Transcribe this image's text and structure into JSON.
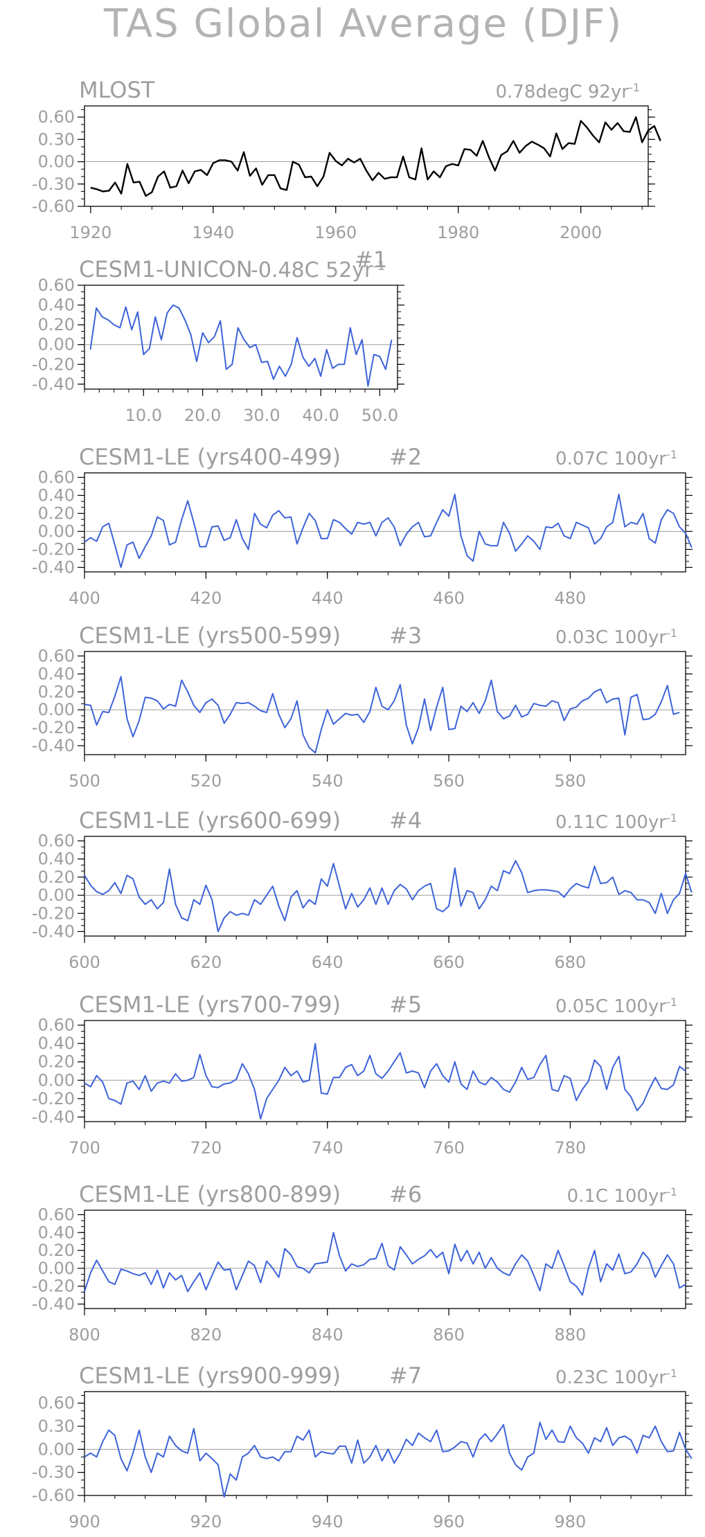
{
  "figure": {
    "title": "TAS Global Average (DJF)"
  },
  "colors": {
    "text": "#9e9e9e",
    "obs_line": "#000000",
    "model_line": "#3d63d9",
    "zero_line": "#9e9e9e",
    "axis": "#000000"
  },
  "chart_data": [
    {
      "type": "line",
      "title": "MLOST",
      "trend_label": "0.78degC 92yr",
      "trend_exp": "-1",
      "line_color": "#000000",
      "x_start": 1920,
      "xlim": [
        1919,
        2011
      ],
      "xticks": [
        1920,
        1940,
        1960,
        1980,
        2000
      ],
      "xtick_labels": [
        "1920",
        "1940",
        "1960",
        "1980",
        "2000"
      ],
      "ylim": [
        -0.6,
        0.75
      ],
      "yticks": [
        -0.6,
        -0.3,
        0.0,
        0.3,
        0.6
      ],
      "ytick_labels": [
        "-0.60",
        "-0.30",
        "0.00",
        "0.30",
        "0.60"
      ],
      "values": [
        -0.35,
        -0.37,
        -0.4,
        -0.39,
        -0.28,
        -0.43,
        -0.03,
        -0.28,
        -0.27,
        -0.46,
        -0.41,
        -0.2,
        -0.13,
        -0.35,
        -0.33,
        -0.12,
        -0.29,
        -0.13,
        -0.11,
        -0.18,
        -0.02,
        0.02,
        0.02,
        0.0,
        -0.12,
        0.13,
        -0.19,
        -0.09,
        -0.31,
        -0.18,
        -0.18,
        -0.36,
        -0.38,
        0.0,
        -0.04,
        -0.21,
        -0.2,
        -0.33,
        -0.2,
        0.12,
        0.01,
        -0.05,
        0.04,
        -0.01,
        0.04,
        -0.12,
        -0.25,
        -0.15,
        -0.23,
        -0.21,
        -0.21,
        0.07,
        -0.21,
        -0.24,
        0.18,
        -0.24,
        -0.13,
        -0.21,
        -0.06,
        -0.03,
        -0.05,
        0.17,
        0.16,
        0.08,
        0.28,
        0.06,
        -0.12,
        0.09,
        0.14,
        0.28,
        0.12,
        0.21,
        0.27,
        0.23,
        0.18,
        0.07,
        0.38,
        0.17,
        0.25,
        0.24,
        0.55,
        0.46,
        0.35,
        0.26,
        0.53,
        0.43,
        0.52,
        0.41,
        0.4,
        0.6,
        0.26,
        0.42,
        0.48,
        0.28
      ]
    },
    {
      "type": "line",
      "title": "CESM1-UNICON",
      "trend_label": "-0.48C 52yr",
      "trend_exp": "-1",
      "panel_number": "#1",
      "line_color": "#3d63d9",
      "x_start": 1,
      "xlim": [
        0,
        53
      ],
      "xticks": [
        10,
        20,
        30,
        40,
        50
      ],
      "xtick_labels": [
        "10.0",
        "20.0",
        "30.0",
        "40.0",
        "50.0"
      ],
      "ylim": [
        -0.45,
        0.6
      ],
      "yticks": [
        -0.4,
        -0.2,
        0.0,
        0.2,
        0.4,
        0.6
      ],
      "ytick_labels": [
        "-0.40",
        "-0.20",
        "0.00",
        "0.20",
        "0.40",
        "0.60"
      ],
      "values": [
        -0.05,
        0.37,
        0.28,
        0.25,
        0.2,
        0.17,
        0.38,
        0.15,
        0.33,
        -0.1,
        -0.04,
        0.28,
        0.05,
        0.32,
        0.4,
        0.37,
        0.25,
        0.1,
        -0.17,
        0.12,
        0.02,
        0.08,
        0.24,
        -0.25,
        -0.2,
        0.17,
        0.05,
        -0.03,
        0.0,
        -0.18,
        -0.17,
        -0.35,
        -0.22,
        -0.32,
        -0.2,
        0.07,
        -0.13,
        -0.22,
        -0.14,
        -0.32,
        -0.05,
        -0.24,
        -0.2,
        -0.2,
        0.17,
        -0.1,
        0.05,
        -0.42,
        -0.1,
        -0.12,
        -0.25,
        0.05
      ]
    },
    {
      "type": "line",
      "title": "CESM1-LE (yrs400-499)",
      "panel_number": "#2",
      "trend_label": "0.07C 100yr",
      "trend_exp": "-1",
      "line_color": "#3d63d9",
      "x_start": 400,
      "xlim": [
        400,
        499
      ],
      "xticks": [
        400,
        420,
        440,
        460,
        480
      ],
      "xtick_labels": [
        "400",
        "420",
        "440",
        "460",
        "480"
      ],
      "ylim": [
        -0.45,
        0.65
      ],
      "yticks": [
        -0.4,
        -0.2,
        0.0,
        0.2,
        0.4,
        0.6
      ],
      "ytick_labels": [
        "-0.40",
        "-0.20",
        "0.00",
        "0.20",
        "0.40",
        "0.60"
      ],
      "values": [
        -0.12,
        -0.07,
        -0.11,
        0.05,
        0.09,
        -0.15,
        -0.4,
        -0.15,
        -0.12,
        -0.3,
        -0.17,
        -0.05,
        0.16,
        0.12,
        -0.15,
        -0.12,
        0.13,
        0.34,
        0.1,
        -0.17,
        -0.17,
        0.05,
        0.06,
        -0.1,
        -0.07,
        0.13,
        -0.08,
        -0.2,
        0.2,
        0.08,
        0.04,
        0.18,
        0.23,
        0.15,
        0.16,
        -0.14,
        0.04,
        0.2,
        0.12,
        -0.08,
        -0.08,
        0.13,
        0.1,
        0.03,
        -0.03,
        0.1,
        0.08,
        0.1,
        -0.05,
        0.1,
        0.15,
        0.05,
        -0.16,
        -0.03,
        0.05,
        0.1,
        -0.06,
        -0.05,
        0.1,
        0.24,
        0.17,
        0.41,
        -0.05,
        -0.27,
        -0.33,
        0.0,
        -0.14,
        -0.16,
        -0.16,
        0.1,
        -0.02,
        -0.22,
        -0.14,
        -0.05,
        -0.11,
        -0.2,
        0.05,
        0.04,
        0.09,
        -0.05,
        -0.08,
        0.1,
        0.07,
        0.04,
        -0.14,
        -0.08,
        0.05,
        0.1,
        0.41,
        0.05,
        0.1,
        0.08,
        0.2,
        -0.08,
        -0.13,
        0.13,
        0.24,
        0.2,
        0.05,
        -0.02,
        -0.18
      ]
    },
    {
      "type": "line",
      "title": "CESM1-LE (yrs500-599)",
      "panel_number": "#3",
      "trend_label": "0.03C 100yr",
      "trend_exp": "-1",
      "line_color": "#3d63d9",
      "x_start": 500,
      "xlim": [
        500,
        599
      ],
      "xticks": [
        500,
        520,
        540,
        560,
        580
      ],
      "xtick_labels": [
        "500",
        "520",
        "540",
        "560",
        "580"
      ],
      "ylim": [
        -0.5,
        0.65
      ],
      "yticks": [
        -0.4,
        -0.2,
        0.0,
        0.2,
        0.4,
        0.6
      ],
      "ytick_labels": [
        "-0.40",
        "-0.20",
        "0.00",
        "0.20",
        "0.40",
        "0.60"
      ],
      "values": [
        0.06,
        0.05,
        -0.17,
        -0.02,
        -0.03,
        0.15,
        0.37,
        -0.1,
        -0.3,
        -0.12,
        0.14,
        0.13,
        0.1,
        0.01,
        0.06,
        0.04,
        0.33,
        0.2,
        0.05,
        -0.03,
        0.08,
        0.12,
        0.05,
        -0.15,
        -0.05,
        0.08,
        0.07,
        0.08,
        0.04,
        -0.01,
        -0.03,
        0.18,
        -0.05,
        -0.2,
        -0.1,
        0.1,
        -0.28,
        -0.42,
        -0.48,
        -0.22,
        0.0,
        -0.16,
        -0.1,
        -0.04,
        -0.06,
        -0.05,
        -0.14,
        -0.02,
        0.25,
        0.04,
        0.0,
        0.1,
        0.28,
        -0.17,
        -0.38,
        -0.2,
        0.12,
        -0.23,
        0.03,
        0.25,
        -0.22,
        -0.21,
        0.04,
        -0.02,
        0.08,
        -0.04,
        0.1,
        0.33,
        -0.02,
        -0.1,
        -0.07,
        0.05,
        -0.08,
        -0.05,
        0.07,
        0.05,
        0.04,
        0.1,
        0.08,
        -0.12,
        0.01,
        0.03,
        0.1,
        0.13,
        0.2,
        0.23,
        0.08,
        0.12,
        0.13,
        -0.28,
        0.14,
        0.17,
        -0.11,
        -0.1,
        -0.05,
        0.09,
        0.27,
        -0.05,
        -0.03
      ]
    },
    {
      "type": "line",
      "title": "CESM1-LE (yrs600-699)",
      "panel_number": "#4",
      "trend_label": "0.11C 100yr",
      "trend_exp": "-1",
      "line_color": "#3d63d9",
      "x_start": 600,
      "xlim": [
        600,
        699
      ],
      "xticks": [
        600,
        620,
        640,
        660,
        680
      ],
      "xtick_labels": [
        "600",
        "620",
        "640",
        "660",
        "680"
      ],
      "ylim": [
        -0.45,
        0.65
      ],
      "yticks": [
        -0.4,
        -0.2,
        0.0,
        0.2,
        0.4,
        0.6
      ],
      "ytick_labels": [
        "-0.40",
        "-0.20",
        "0.00",
        "0.20",
        "0.40",
        "0.60"
      ],
      "values": [
        0.22,
        0.11,
        0.04,
        0.01,
        0.05,
        0.14,
        0.02,
        0.22,
        0.18,
        -0.02,
        -0.1,
        -0.05,
        -0.15,
        -0.08,
        0.29,
        -0.1,
        -0.25,
        -0.28,
        -0.05,
        -0.1,
        0.11,
        -0.05,
        -0.4,
        -0.25,
        -0.18,
        -0.22,
        -0.2,
        -0.22,
        -0.05,
        -0.1,
        0.0,
        0.1,
        -0.12,
        -0.28,
        -0.02,
        0.05,
        -0.14,
        -0.05,
        -0.1,
        0.18,
        0.1,
        0.35,
        0.1,
        -0.15,
        0.02,
        -0.13,
        -0.05,
        0.08,
        -0.1,
        0.08,
        -0.1,
        0.05,
        0.12,
        0.07,
        -0.05,
        0.05,
        0.1,
        0.13,
        -0.15,
        -0.18,
        -0.12,
        0.3,
        -0.12,
        0.05,
        0.03,
        -0.15,
        -0.05,
        0.1,
        0.05,
        0.27,
        0.24,
        0.38,
        0.25,
        0.03,
        0.05,
        0.06,
        0.06,
        0.05,
        0.04,
        -0.02,
        0.07,
        0.13,
        0.1,
        0.08,
        0.32,
        0.13,
        0.14,
        0.2,
        0.01,
        0.05,
        0.03,
        -0.05,
        -0.05,
        -0.08,
        -0.2,
        0.02,
        -0.2,
        -0.05,
        0.02,
        0.24,
        0.03
      ]
    },
    {
      "type": "line",
      "title": "CESM1-LE (yrs700-799)",
      "panel_number": "#5",
      "trend_label": "0.05C 100yr",
      "trend_exp": "-1",
      "line_color": "#3d63d9",
      "x_start": 700,
      "xlim": [
        700,
        799
      ],
      "xticks": [
        700,
        720,
        740,
        760,
        780
      ],
      "xtick_labels": [
        "700",
        "720",
        "740",
        "760",
        "780"
      ],
      "ylim": [
        -0.45,
        0.65
      ],
      "yticks": [
        -0.4,
        -0.2,
        0.0,
        0.2,
        0.4,
        0.6
      ],
      "ytick_labels": [
        "-0.40",
        "-0.20",
        "0.00",
        "0.20",
        "0.40",
        "0.60"
      ],
      "values": [
        -0.03,
        -0.07,
        0.05,
        -0.02,
        -0.2,
        -0.22,
        -0.26,
        -0.03,
        -0.01,
        -0.1,
        0.05,
        -0.12,
        -0.03,
        -0.01,
        -0.03,
        0.07,
        -0.01,
        0.0,
        0.03,
        0.28,
        0.05,
        -0.07,
        -0.08,
        -0.04,
        -0.03,
        0.01,
        0.18,
        0.07,
        -0.1,
        -0.42,
        -0.2,
        -0.1,
        0.0,
        0.14,
        0.05,
        0.1,
        -0.02,
        0.0,
        0.4,
        -0.14,
        -0.15,
        0.03,
        0.03,
        0.14,
        0.17,
        0.05,
        0.1,
        0.27,
        0.07,
        0.02,
        0.1,
        0.2,
        0.3,
        0.08,
        0.1,
        0.08,
        -0.08,
        0.1,
        0.18,
        0.05,
        -0.02,
        0.2,
        -0.04,
        -0.1,
        0.1,
        -0.02,
        -0.05,
        0.03,
        -0.02,
        -0.1,
        -0.13,
        -0.02,
        0.14,
        0.01,
        0.03,
        0.17,
        0.27,
        -0.1,
        -0.12,
        0.05,
        0.02,
        -0.22,
        -0.1,
        -0.01,
        0.22,
        0.15,
        -0.1,
        0.14,
        0.26,
        -0.1,
        -0.18,
        -0.33,
        -0.25,
        -0.1,
        0.03,
        -0.09,
        -0.1,
        -0.05,
        0.15,
        0.1
      ]
    },
    {
      "type": "line",
      "title": "CESM1-LE (yrs800-899)",
      "panel_number": "#6",
      "trend_label": "0.1C 100yr",
      "trend_exp": "-1",
      "line_color": "#3d63d9",
      "x_start": 800,
      "xlim": [
        800,
        899
      ],
      "xticks": [
        800,
        820,
        840,
        860,
        880
      ],
      "xtick_labels": [
        "800",
        "820",
        "840",
        "860",
        "880"
      ],
      "ylim": [
        -0.45,
        0.65
      ],
      "yticks": [
        -0.4,
        -0.2,
        0.0,
        0.2,
        0.4,
        0.6
      ],
      "ytick_labels": [
        "-0.40",
        "-0.20",
        "0.00",
        "0.20",
        "0.40",
        "0.60"
      ],
      "values": [
        -0.26,
        -0.05,
        0.09,
        -0.03,
        -0.15,
        -0.18,
        -0.01,
        -0.03,
        -0.06,
        -0.08,
        -0.05,
        -0.18,
        -0.02,
        -0.22,
        -0.05,
        -0.13,
        -0.08,
        -0.26,
        -0.15,
        -0.05,
        -0.24,
        -0.08,
        0.07,
        -0.02,
        -0.01,
        -0.24,
        -0.08,
        0.08,
        0.03,
        -0.16,
        0.08,
        0.0,
        -0.1,
        0.22,
        0.15,
        0.02,
        0.0,
        -0.05,
        0.05,
        0.06,
        0.07,
        0.4,
        0.14,
        -0.03,
        0.05,
        0.02,
        0.04,
        0.1,
        0.11,
        0.28,
        0.03,
        -0.02,
        0.24,
        0.15,
        0.05,
        0.1,
        0.14,
        0.21,
        0.12,
        0.18,
        -0.06,
        0.27,
        0.08,
        0.2,
        0.05,
        0.18,
        0.0,
        0.12,
        0.0,
        -0.05,
        -0.08,
        0.05,
        0.15,
        0.08,
        -0.08,
        -0.25,
        0.05,
        0.0,
        0.2,
        0.03,
        -0.15,
        -0.2,
        -0.3,
        0.0,
        0.2,
        -0.15,
        0.05,
        -0.02,
        0.16,
        -0.06,
        -0.04,
        0.05,
        0.18,
        0.1,
        -0.1,
        0.03,
        0.15,
        0.05,
        -0.22,
        -0.18
      ]
    },
    {
      "type": "line",
      "title": "CESM1-LE (yrs900-999)",
      "panel_number": "#7",
      "trend_label": "0.23C 100yr",
      "trend_exp": "-1",
      "line_color": "#3d63d9",
      "x_start": 900,
      "xlim": [
        900,
        999
      ],
      "xticks": [
        900,
        920,
        940,
        960,
        980
      ],
      "xtick_labels": [
        "900",
        "920",
        "940",
        "960",
        "980"
      ],
      "ylim": [
        -0.6,
        0.75
      ],
      "yticks": [
        -0.6,
        -0.3,
        0.0,
        0.3,
        0.6
      ],
      "ytick_labels": [
        "-0.60",
        "-0.30",
        "0.00",
        "0.30",
        "0.60"
      ],
      "values": [
        -0.1,
        -0.05,
        -0.1,
        0.1,
        0.25,
        0.18,
        -0.12,
        -0.28,
        -0.05,
        0.25,
        -0.1,
        -0.3,
        -0.05,
        -0.1,
        0.17,
        0.05,
        -0.02,
        -0.05,
        0.27,
        -0.15,
        -0.05,
        -0.12,
        -0.2,
        -0.62,
        -0.32,
        -0.4,
        -0.1,
        -0.05,
        0.05,
        -0.1,
        -0.12,
        -0.1,
        -0.15,
        -0.03,
        -0.03,
        0.17,
        0.12,
        0.25,
        -0.1,
        -0.03,
        -0.05,
        -0.06,
        0.04,
        0.04,
        -0.18,
        0.12,
        -0.18,
        -0.1,
        0.05,
        -0.15,
        0.0,
        -0.18,
        -0.05,
        0.13,
        0.05,
        0.21,
        0.15,
        0.1,
        0.25,
        -0.03,
        -0.02,
        0.03,
        0.1,
        0.08,
        -0.1,
        0.12,
        0.2,
        0.1,
        0.2,
        0.32,
        -0.05,
        -0.2,
        -0.27,
        -0.1,
        -0.05,
        0.35,
        0.13,
        0.25,
        0.1,
        0.09,
        0.3,
        0.15,
        0.08,
        -0.05,
        0.15,
        0.1,
        0.28,
        0.05,
        0.15,
        0.17,
        0.12,
        -0.05,
        0.18,
        0.15,
        0.3,
        0.1,
        -0.03,
        -0.02,
        0.22,
        0.0,
        -0.12
      ]
    }
  ]
}
